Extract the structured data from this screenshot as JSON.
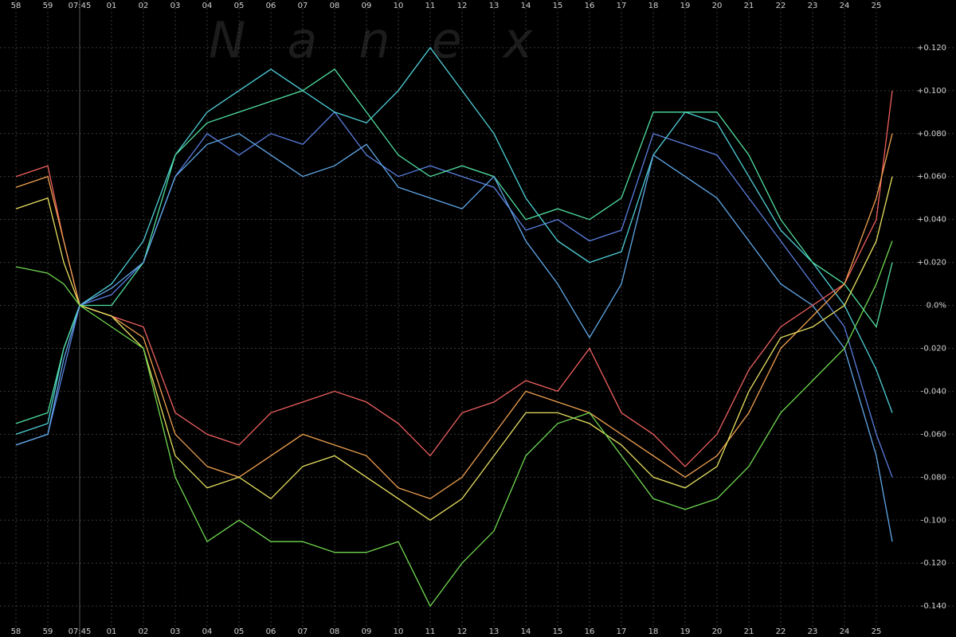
{
  "chart_data": {
    "type": "line",
    "watermark": "Nanex",
    "x": [
      -2,
      -1,
      -0.5,
      0,
      1,
      2,
      3,
      4,
      5,
      6,
      7,
      8,
      9,
      10,
      11,
      12,
      13,
      14,
      15,
      16,
      17,
      18,
      19,
      20,
      21,
      22,
      23,
      24,
      25,
      25.5
    ],
    "xlim": [
      -2.5,
      27.5
    ],
    "xticks": [
      {
        "value": -2,
        "label": "58"
      },
      {
        "value": -1,
        "label": "59"
      },
      {
        "value": 0,
        "label": "07:45"
      },
      {
        "value": 1,
        "label": "01"
      },
      {
        "value": 2,
        "label": "02"
      },
      {
        "value": 3,
        "label": "03"
      },
      {
        "value": 4,
        "label": "04"
      },
      {
        "value": 5,
        "label": "05"
      },
      {
        "value": 6,
        "label": "06"
      },
      {
        "value": 7,
        "label": "07"
      },
      {
        "value": 8,
        "label": "08"
      },
      {
        "value": 9,
        "label": "09"
      },
      10,
      11,
      12,
      13,
      14,
      15,
      16,
      17,
      18,
      19,
      20,
      21,
      22,
      23,
      24,
      25
    ],
    "ylim": [
      -0.1544,
      0.1422
    ],
    "yticks": [
      {
        "value": 0.12,
        "label": "+0.120"
      },
      {
        "value": 0.1,
        "label": "+0.100"
      },
      {
        "value": 0.08,
        "label": "+0.080"
      },
      {
        "value": 0.06,
        "label": "+0.060"
      },
      {
        "value": 0.04,
        "label": "+0.040"
      },
      {
        "value": 0.02,
        "label": "+0.020"
      },
      {
        "value": 0,
        "label": "0.0%"
      },
      {
        "value": -0.02,
        "label": "-0.020"
      },
      {
        "value": -0.04,
        "label": "-0.040"
      },
      {
        "value": -0.06,
        "label": "-0.060"
      },
      {
        "value": -0.08,
        "label": "-0.080"
      },
      {
        "value": -0.1,
        "label": "-0.100"
      },
      {
        "value": -0.12,
        "label": "-0.120"
      },
      {
        "value": -0.14,
        "label": "-0.140"
      }
    ],
    "grid": true,
    "series": [
      {
        "color": "#5b7fe0",
        "values": [
          -0.065,
          -0.06,
          -0.03,
          0,
          0.005,
          0.02,
          0.06,
          0.08,
          0.07,
          0.08,
          0.075,
          0.09,
          0.07,
          0.06,
          0.065,
          0.06,
          0.055,
          0.035,
          0.04,
          0.03,
          0.035,
          0.08,
          0.075,
          0.07,
          0.05,
          0.03,
          0.01,
          -0.01,
          -0.06,
          -0.08
        ]
      },
      {
        "color": "#4fd0d8",
        "values": [
          -0.06,
          -0.055,
          -0.02,
          0,
          0.01,
          0.03,
          0.07,
          0.09,
          0.1,
          0.11,
          0.1,
          0.09,
          0.085,
          0.1,
          0.12,
          0.1,
          0.08,
          0.05,
          0.03,
          0.02,
          0.025,
          0.07,
          0.09,
          0.085,
          0.06,
          0.035,
          0.02,
          0,
          -0.03,
          -0.05
        ]
      },
      {
        "color": "#50e0a0",
        "values": [
          -0.055,
          -0.05,
          -0.02,
          0,
          0,
          0.02,
          0.07,
          0.085,
          0.09,
          0.095,
          0.1,
          0.11,
          0.09,
          0.07,
          0.06,
          0.065,
          0.06,
          0.04,
          0.045,
          0.04,
          0.05,
          0.09,
          0.09,
          0.09,
          0.07,
          0.04,
          0.02,
          0.01,
          -0.01,
          0.02
        ]
      },
      {
        "color": "#60a8e8",
        "values": [
          -0.065,
          -0.06,
          -0.025,
          0,
          0.008,
          0.02,
          0.06,
          0.075,
          0.08,
          0.07,
          0.06,
          0.065,
          0.075,
          0.055,
          0.05,
          0.045,
          0.06,
          0.03,
          0.01,
          -0.015,
          0.01,
          0.07,
          0.06,
          0.05,
          0.03,
          0.01,
          0,
          -0.02,
          -0.07,
          -0.11
        ]
      },
      {
        "color": "#f06060",
        "values": [
          0.06,
          0.065,
          0.03,
          0,
          -0.005,
          -0.01,
          -0.05,
          -0.06,
          -0.065,
          -0.05,
          -0.045,
          -0.04,
          -0.045,
          -0.055,
          -0.07,
          -0.05,
          -0.045,
          -0.035,
          -0.04,
          -0.02,
          -0.05,
          -0.06,
          -0.075,
          -0.06,
          -0.03,
          -0.01,
          0,
          0.01,
          0.04,
          0.1
        ]
      },
      {
        "color": "#f0a050",
        "values": [
          0.055,
          0.06,
          0.03,
          0,
          -0.005,
          -0.015,
          -0.06,
          -0.075,
          -0.08,
          -0.07,
          -0.06,
          -0.065,
          -0.07,
          -0.085,
          -0.09,
          -0.08,
          -0.06,
          -0.04,
          -0.045,
          -0.05,
          -0.06,
          -0.07,
          -0.08,
          -0.07,
          -0.05,
          -0.02,
          -0.005,
          0.01,
          0.05,
          0.08
        ]
      },
      {
        "color": "#e8e060",
        "values": [
          0.045,
          0.05,
          0.02,
          0,
          -0.005,
          -0.02,
          -0.07,
          -0.085,
          -0.08,
          -0.09,
          -0.075,
          -0.07,
          -0.08,
          -0.09,
          -0.1,
          -0.09,
          -0.07,
          -0.05,
          -0.05,
          -0.055,
          -0.065,
          -0.08,
          -0.085,
          -0.075,
          -0.04,
          -0.015,
          -0.01,
          0,
          0.03,
          0.06
        ]
      },
      {
        "color": "#70d850",
        "values": [
          0.018,
          0.015,
          0.01,
          0,
          -0.01,
          -0.02,
          -0.08,
          -0.11,
          -0.1,
          -0.11,
          -0.11,
          -0.115,
          -0.115,
          -0.11,
          -0.14,
          -0.12,
          -0.105,
          -0.07,
          -0.055,
          -0.05,
          -0.07,
          -0.09,
          -0.095,
          -0.09,
          -0.075,
          -0.05,
          -0.035,
          -0.02,
          0.01,
          0.03
        ]
      }
    ]
  }
}
